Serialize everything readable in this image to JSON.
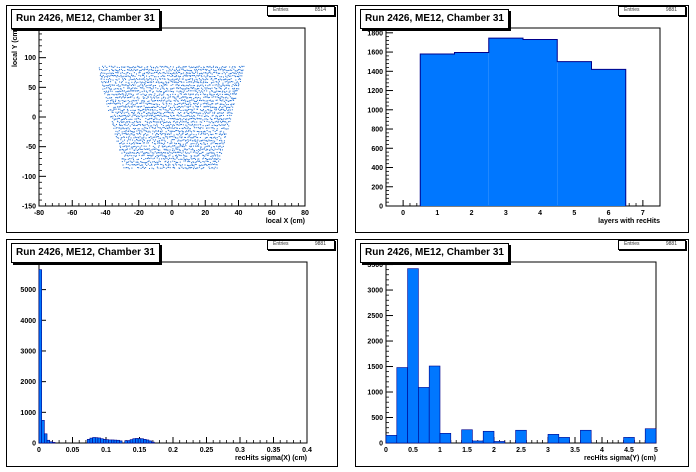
{
  "colors": {
    "fill": "#0077ff",
    "line": "#00008b",
    "dot": "#1f6fd6",
    "axis": "#000000"
  },
  "pads": [
    {
      "title": "Run 2426, ME12, Chamber 31",
      "stats": {
        "left": "Entries",
        "right": "8514"
      }
    },
    {
      "title": "Run 2426, ME12, Chamber 31",
      "stats": {
        "left": "Entries",
        "right": "9881"
      }
    },
    {
      "title": "Run 2426, ME12, Chamber 31",
      "stats": {
        "left": "Entries",
        "right": "9881"
      }
    },
    {
      "title": "Run 2426, ME12, Chamber 31",
      "stats": {
        "left": "Entries",
        "right": "9881"
      }
    }
  ],
  "chart_data": [
    {
      "type": "scatter",
      "title": "Run 2426, ME12, Chamber 31",
      "xlabel": "local X (cm)",
      "ylabel": "local Y (cm)",
      "xlim": [
        -80,
        80
      ],
      "ylim": [
        -150,
        150
      ],
      "xticks": [
        -80,
        -60,
        -40,
        -20,
        0,
        20,
        40,
        60,
        80
      ],
      "yticks": [
        -150,
        -100,
        -50,
        0,
        50,
        100,
        150
      ],
      "region": {
        "y_top": 85,
        "y_bottom": -85,
        "top_x": [
          -45,
          43
        ],
        "bottom_x": [
          -29,
          27
        ],
        "dot_rows": 34
      }
    },
    {
      "type": "bar",
      "title": "Run 2426, ME12, Chamber 31",
      "xlabel": "layers with recHits",
      "ylabel": "",
      "xlim": [
        -0.5,
        7.5
      ],
      "ylim": [
        0,
        1850
      ],
      "xticks": [
        0,
        1,
        2,
        3,
        4,
        5,
        6,
        7
      ],
      "yticks": [
        0,
        200,
        400,
        600,
        800,
        1000,
        1200,
        1400,
        1600,
        1800
      ],
      "bin_edges": [
        0.5,
        1.5,
        2.5,
        3.5,
        4.5,
        5.5,
        6.5
      ],
      "values": [
        1580,
        1595,
        1745,
        1730,
        1500,
        1420
      ]
    },
    {
      "type": "bar",
      "title": "Run 2426, ME12, Chamber 31",
      "xlabel": "recHits sigma(X) (cm)",
      "ylabel": "",
      "xlim": [
        0,
        0.4
      ],
      "ylim": [
        0,
        5900
      ],
      "xticks": [
        0,
        0.05,
        0.1,
        0.15,
        0.2,
        0.25,
        0.3,
        0.35,
        0.4
      ],
      "xtick_labels": [
        "0",
        "0.05",
        "0.1",
        "0.15",
        "0.2",
        "0.25",
        "0.3",
        "0.35",
        "0.4"
      ],
      "yticks": [
        0,
        1000,
        2000,
        3000,
        4000,
        5000
      ],
      "bin_width": 0.004,
      "bin_starts": [
        0,
        0.004,
        0.008,
        0.012,
        0.016,
        0.02,
        0.072,
        0.076,
        0.08,
        0.084,
        0.088,
        0.092,
        0.096,
        0.1,
        0.104,
        0.108,
        0.112,
        0.116,
        0.12,
        0.128,
        0.132,
        0.136,
        0.14,
        0.144,
        0.148,
        0.152,
        0.156,
        0.16,
        0.164,
        0.168
      ],
      "values": [
        5650,
        740,
        300,
        90,
        40,
        20,
        120,
        160,
        180,
        175,
        165,
        140,
        120,
        110,
        100,
        100,
        95,
        90,
        70,
        75,
        80,
        110,
        140,
        150,
        145,
        140,
        120,
        100,
        70,
        30
      ]
    },
    {
      "type": "bar",
      "title": "Run 2426, ME12, Chamber 31",
      "xlabel": "recHits sigma(Y) (cm)",
      "ylabel": "",
      "xlim": [
        0,
        5
      ],
      "ylim": [
        0,
        3550
      ],
      "xticks": [
        0,
        0.5,
        1,
        1.5,
        2,
        2.5,
        3,
        3.5,
        4,
        4.5,
        5
      ],
      "xtick_labels": [
        "0",
        "0.5",
        "1",
        "1.5",
        "2",
        "2.5",
        "3",
        "3.5",
        "4",
        "4.5",
        "5"
      ],
      "yticks": [
        0,
        500,
        1000,
        1500,
        2000,
        2500,
        3000,
        3500
      ],
      "bin_width": 0.2,
      "values": [
        150,
        1480,
        3420,
        1090,
        1510,
        190,
        0,
        260,
        40,
        230,
        30,
        0,
        250,
        0,
        0,
        170,
        110,
        0,
        250,
        0,
        0,
        0,
        110,
        0,
        280
      ]
    }
  ]
}
